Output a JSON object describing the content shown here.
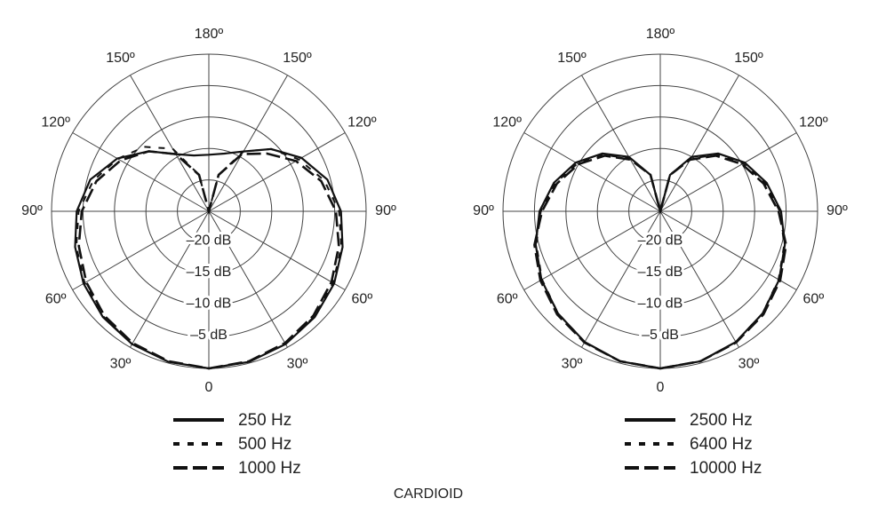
{
  "caption": "CARDIOID",
  "chart_data": [
    {
      "type": "polar",
      "rlim": [
        -25,
        0
      ],
      "rticks": [
        {
          "value": -20,
          "label": "–20 dB"
        },
        {
          "value": -15,
          "label": "–15 dB"
        },
        {
          "value": -10,
          "label": "–10 dB"
        },
        {
          "value": -5,
          "label": "–5 dB"
        }
      ],
      "thetaticks": [
        0,
        {
          "value": 30,
          "label": "30º"
        },
        {
          "value": 60,
          "label": "60º"
        },
        {
          "value": 90,
          "label": "90º"
        },
        {
          "value": 120,
          "label": "120º"
        },
        {
          "value": 150,
          "label": "150º"
        },
        {
          "value": 180,
          "label": "180º"
        },
        {
          "value": 210,
          "label": "150º"
        },
        {
          "value": 240,
          "label": "120º"
        },
        {
          "value": 270,
          "label": "90º"
        },
        {
          "value": 300,
          "label": "60º"
        },
        {
          "value": 330,
          "label": "30º"
        }
      ],
      "theta": [
        0,
        15,
        30,
        45,
        60,
        75,
        90,
        105,
        120,
        135,
        150,
        165,
        180,
        195,
        210,
        225,
        240,
        255,
        270,
        285,
        300,
        315,
        330,
        345
      ],
      "series": [
        {
          "name": "250 Hz",
          "color": "#111111",
          "linestyle": "solid",
          "values": [
            0,
            -0.2,
            -0.6,
            -1.2,
            -2,
            -3,
            -4,
            -5.5,
            -8,
            -11,
            -14,
            -15.5,
            -16,
            -15.8,
            -14.5,
            -11.5,
            -8.2,
            -5.5,
            -4,
            -3,
            -2,
            -1.2,
            -0.6,
            -0.2
          ]
        },
        {
          "name": "500 Hz",
          "color": "#111111",
          "linestyle": "short-dash",
          "values": [
            0,
            -0.2,
            -0.6,
            -1.3,
            -2.2,
            -3.2,
            -4.3,
            -6,
            -8.5,
            -11,
            -14,
            -19,
            -25,
            -19,
            -13.5,
            -10.5,
            -8.3,
            -6,
            -4.3,
            -3.2,
            -2.2,
            -1.3,
            -0.6,
            -0.2
          ]
        },
        {
          "name": "1000 Hz",
          "color": "#111111",
          "linestyle": "long-dash",
          "values": [
            0,
            -0.3,
            -0.8,
            -1.5,
            -2.5,
            -3.6,
            -4.8,
            -6.5,
            -9,
            -12,
            -14.5,
            -19,
            -25,
            -19,
            -14.5,
            -11.5,
            -8.8,
            -6.5,
            -4.8,
            -3.6,
            -2.5,
            -1.5,
            -0.8,
            -0.3
          ]
        }
      ]
    },
    {
      "type": "polar",
      "rlim": [
        -25,
        0
      ],
      "rticks": [
        {
          "value": -20,
          "label": "–20 dB"
        },
        {
          "value": -15,
          "label": "–15 dB"
        },
        {
          "value": -10,
          "label": "–10 dB"
        },
        {
          "value": -5,
          "label": "–5 dB"
        }
      ],
      "thetaticks": [
        0,
        {
          "value": 30,
          "label": "30º"
        },
        {
          "value": 60,
          "label": "60º"
        },
        {
          "value": 90,
          "label": "90º"
        },
        {
          "value": 120,
          "label": "120º"
        },
        {
          "value": 150,
          "label": "150º"
        },
        {
          "value": 180,
          "label": "180º"
        },
        {
          "value": 210,
          "label": "150º"
        },
        {
          "value": 240,
          "label": "120º"
        },
        {
          "value": 270,
          "label": "90º"
        },
        {
          "value": 300,
          "label": "60º"
        },
        {
          "value": 330,
          "label": "30º"
        }
      ],
      "theta": [
        0,
        15,
        30,
        45,
        60,
        75,
        90,
        105,
        120,
        135,
        150,
        165,
        180,
        195,
        210,
        225,
        240,
        255,
        270,
        285,
        300,
        315,
        330,
        345
      ],
      "series": [
        {
          "name": "2500 Hz",
          "color": "#111111",
          "linestyle": "solid",
          "values": [
            0,
            -0.3,
            -1,
            -2,
            -3.2,
            -4.5,
            -5.8,
            -7.5,
            -9.5,
            -12,
            -15,
            -19,
            -25,
            -19,
            -15,
            -12,
            -9.5,
            -7.5,
            -5.8,
            -4.5,
            -3.2,
            -2,
            -1,
            -0.3
          ]
        },
        {
          "name": "6400 Hz",
          "color": "#111111",
          "linestyle": "short-dash",
          "values": [
            0,
            -0.3,
            -1,
            -2,
            -3.3,
            -4.6,
            -6,
            -7.7,
            -9.8,
            -12.3,
            -15.3,
            -19,
            -25,
            -19,
            -15.3,
            -12.3,
            -9.8,
            -7.7,
            -6,
            -4.6,
            -3.3,
            -2,
            -1,
            -0.3
          ]
        },
        {
          "name": "10000 Hz",
          "color": "#111111",
          "linestyle": "long-dash",
          "values": [
            0,
            -0.3,
            -0.9,
            -1.8,
            -3,
            -4.3,
            -6.2,
            -8,
            -10,
            -12.5,
            -15.5,
            -19,
            -25,
            -19,
            -15.5,
            -12.5,
            -10,
            -8,
            -6.2,
            -4.3,
            -3,
            -1.8,
            -0.9,
            -0.3
          ]
        }
      ]
    }
  ]
}
